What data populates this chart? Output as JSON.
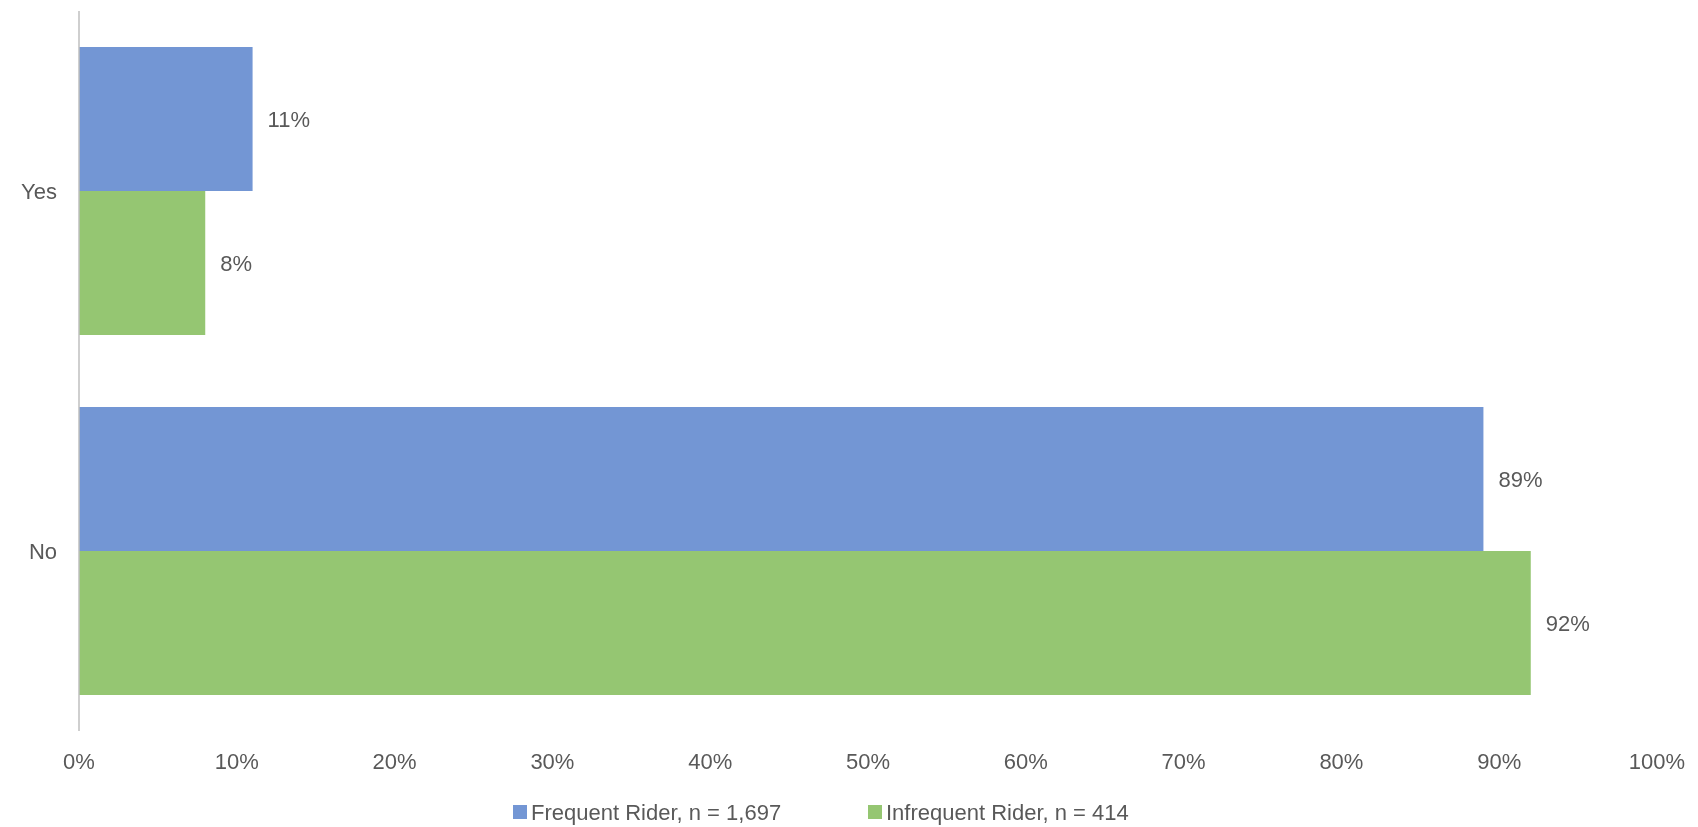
{
  "chart_data": {
    "type": "bar",
    "orientation": "horizontal",
    "categories": [
      "Yes",
      "No"
    ],
    "series": [
      {
        "name": "Frequent Rider, n = 1,697",
        "color": "#7396d4",
        "values": [
          11,
          89
        ],
        "value_labels": [
          "11%",
          "89%"
        ]
      },
      {
        "name": "Infrequent Rider, n = 414",
        "color": "#95c672",
        "values": [
          8,
          92
        ],
        "value_labels": [
          "8%",
          "92%"
        ]
      }
    ],
    "xlim": [
      0,
      100
    ],
    "xticks": [
      {
        "value": 0,
        "label": "0%"
      },
      {
        "value": 10,
        "label": "10%"
      },
      {
        "value": 20,
        "label": "20%"
      },
      {
        "value": 30,
        "label": "30%"
      },
      {
        "value": 40,
        "label": "40%"
      },
      {
        "value": 50,
        "label": "50%"
      },
      {
        "value": 60,
        "label": "60%"
      },
      {
        "value": 70,
        "label": "70%"
      },
      {
        "value": 80,
        "label": "80%"
      },
      {
        "value": 90,
        "label": "90%"
      },
      {
        "value": 100,
        "label": "100%"
      }
    ],
    "legend": "bottom"
  }
}
